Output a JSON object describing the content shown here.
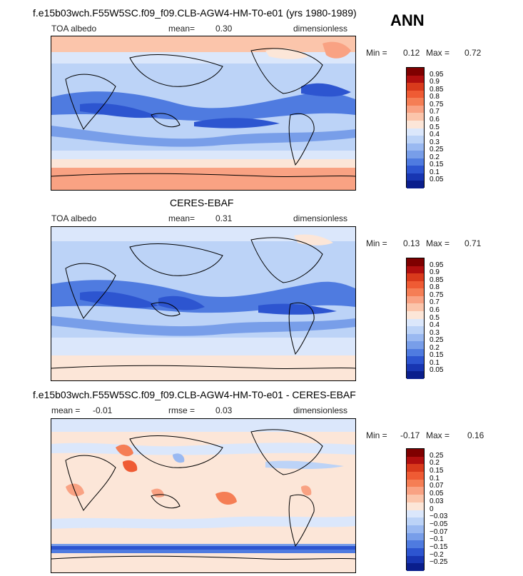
{
  "season": "ANN",
  "panels": [
    {
      "id": "model",
      "title": "f.e15b03wch.F55W5SC.f09_f09.CLB-AGW4-HM-T0-e01 (yrs 1980-1989)",
      "variable": "TOA albedo",
      "stat_label": "mean=",
      "stat_value": "0.30",
      "units": "dimensionless",
      "min_label": "Min =",
      "min_value": "0.12",
      "max_label": "Max =",
      "max_value": "0.72",
      "levels": [
        "0.95",
        "0.9",
        "0.85",
        "0.8",
        "0.75",
        "0.7",
        "0.6",
        "0.5",
        "0.4",
        "0.3",
        "0.25",
        "0.2",
        "0.15",
        "0.1",
        "0.05"
      ],
      "colors": [
        "#7f0000",
        "#b10f0f",
        "#d93a1c",
        "#ef5b34",
        "#f57e55",
        "#f9a283",
        "#fbc5ab",
        "#fce6d8",
        "#dbe7fb",
        "#bcd3f7",
        "#9ab9f1",
        "#789ee9",
        "#4f7be0",
        "#2d55d0",
        "#1836b2",
        "#0a1e8c"
      ]
    },
    {
      "id": "obs",
      "title": "CERES-EBAF",
      "variable": "TOA albedo",
      "stat_label": "mean=",
      "stat_value": "0.31",
      "units": "dimensionless",
      "min_label": "Min =",
      "min_value": "0.13",
      "max_label": "Max =",
      "max_value": "0.71",
      "levels": [
        "0.95",
        "0.9",
        "0.85",
        "0.8",
        "0.75",
        "0.7",
        "0.6",
        "0.5",
        "0.4",
        "0.3",
        "0.25",
        "0.2",
        "0.15",
        "0.1",
        "0.05"
      ],
      "colors": [
        "#7f0000",
        "#b10f0f",
        "#d93a1c",
        "#ef5b34",
        "#f57e55",
        "#f9a283",
        "#fbc5ab",
        "#fce6d8",
        "#dbe7fb",
        "#bcd3f7",
        "#9ab9f1",
        "#789ee9",
        "#4f7be0",
        "#2d55d0",
        "#1836b2",
        "#0a1e8c"
      ]
    },
    {
      "id": "diff",
      "title": "f.e15b03wch.F55W5SC.f09_f09.CLB-AGW4-HM-T0-e01 - CERES-EBAF",
      "stat_label": "mean =",
      "stat_value": "-0.01",
      "rmse_label": "rmse =",
      "rmse_value": "0.03",
      "units": "dimensionless",
      "min_label": "Min =",
      "min_value": "-0.17",
      "max_label": "Max =",
      "max_value": "0.16",
      "levels": [
        "0.25",
        "0.2",
        "0.15",
        "0.1",
        "0.07",
        "0.05",
        "0.03",
        "0",
        "-0.03",
        "-0.05",
        "-0.07",
        "-0.1",
        "-0.15",
        "-0.2",
        "-0.25"
      ],
      "colors": [
        "#7f0000",
        "#b10f0f",
        "#d93a1c",
        "#ef5b34",
        "#f57e55",
        "#f9a283",
        "#fbc5ab",
        "#fce6d8",
        "#dbe7fb",
        "#bcd3f7",
        "#9ab9f1",
        "#789ee9",
        "#4f7be0",
        "#2d55d0",
        "#1836b2",
        "#0a1e8c"
      ]
    }
  ]
}
